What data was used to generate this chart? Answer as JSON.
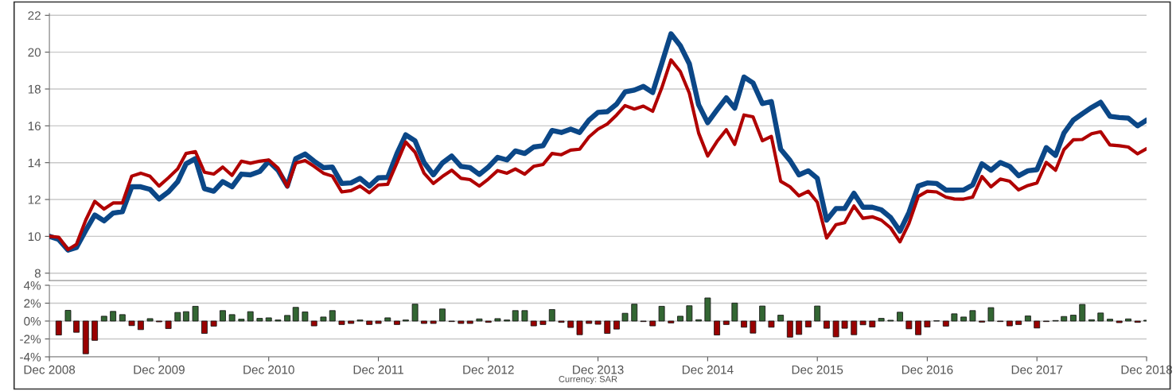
{
  "chart_data": [
    {
      "type": "line",
      "x": [
        "2008-12",
        "2009-01",
        "2009-02",
        "2009-03",
        "2009-04",
        "2009-05",
        "2009-06",
        "2009-07",
        "2009-08",
        "2009-09",
        "2009-10",
        "2009-11",
        "2009-12",
        "2010-01",
        "2010-02",
        "2010-03",
        "2010-04",
        "2010-05",
        "2010-06",
        "2010-07",
        "2010-08",
        "2010-09",
        "2010-10",
        "2010-11",
        "2010-12",
        "2011-01",
        "2011-02",
        "2011-03",
        "2011-04",
        "2011-05",
        "2011-06",
        "2011-07",
        "2011-08",
        "2011-09",
        "2011-10",
        "2011-11",
        "2011-12",
        "2012-01",
        "2012-02",
        "2012-03",
        "2012-04",
        "2012-05",
        "2012-06",
        "2012-07",
        "2012-08",
        "2012-09",
        "2012-10",
        "2012-11",
        "2012-12",
        "2013-01",
        "2013-02",
        "2013-03",
        "2013-04",
        "2013-05",
        "2013-06",
        "2013-07",
        "2013-08",
        "2013-09",
        "2013-10",
        "2013-11",
        "2013-12",
        "2014-01",
        "2014-02",
        "2014-03",
        "2014-04",
        "2014-05",
        "2014-06",
        "2014-07",
        "2014-08",
        "2014-09",
        "2014-10",
        "2014-11",
        "2014-12",
        "2015-01",
        "2015-02",
        "2015-03",
        "2015-04",
        "2015-05",
        "2015-06",
        "2015-07",
        "2015-08",
        "2015-09",
        "2015-10",
        "2015-11",
        "2015-12",
        "2016-01",
        "2016-02",
        "2016-03",
        "2016-04",
        "2016-05",
        "2016-06",
        "2016-07",
        "2016-08",
        "2016-09",
        "2016-10",
        "2016-11",
        "2016-12",
        "2017-01",
        "2017-02",
        "2017-03",
        "2017-04",
        "2017-05",
        "2017-06",
        "2017-07",
        "2017-08",
        "2017-09",
        "2017-10",
        "2017-11",
        "2017-12",
        "2018-01",
        "2018-02",
        "2018-03",
        "2018-04",
        "2018-05",
        "2018-06",
        "2018-07",
        "2018-08",
        "2018-09",
        "2018-10",
        "2018-11",
        "2018-12"
      ],
      "series": [
        {
          "color": "#0b4787",
          "values": [
            10.0,
            9.83,
            9.25,
            9.39,
            10.32,
            11.16,
            10.84,
            11.26,
            11.34,
            12.69,
            12.69,
            12.55,
            12.03,
            12.41,
            12.97,
            13.94,
            14.22,
            12.59,
            12.45,
            12.97,
            12.69,
            13.38,
            13.34,
            13.52,
            14.08,
            13.59,
            12.73,
            14.22,
            14.47,
            14.08,
            13.73,
            13.76,
            12.87,
            12.9,
            13.15,
            12.73,
            13.18,
            13.2,
            14.5,
            15.51,
            15.19,
            14.01,
            13.34,
            13.98,
            14.36,
            13.8,
            13.73,
            13.36,
            13.76,
            14.29,
            14.15,
            14.64,
            14.5,
            14.85,
            14.92,
            15.75,
            15.64,
            15.82,
            15.64,
            16.31,
            16.73,
            16.77,
            17.18,
            17.84,
            17.94,
            18.14,
            17.81,
            19.37,
            21.0,
            20.35,
            19.37,
            17.14,
            16.17,
            16.86,
            17.52,
            16.96,
            18.65,
            18.33,
            17.21,
            17.32,
            14.73,
            14.12,
            13.34,
            13.56,
            13.15,
            10.88,
            11.51,
            11.51,
            12.34,
            11.58,
            11.58,
            11.44,
            11.02,
            10.28,
            11.3,
            12.73,
            12.9,
            12.87,
            12.51,
            12.51,
            12.52,
            12.79,
            13.94,
            13.59,
            14.01,
            13.8,
            13.29,
            13.56,
            13.62,
            14.82,
            14.4,
            15.61,
            16.31,
            16.66,
            17.0,
            17.28,
            16.52,
            16.45,
            16.42,
            16.0,
            16.31
          ]
        },
        {
          "color": "#b00000",
          "values": [
            10.0,
            9.95,
            9.28,
            9.56,
            10.88,
            11.9,
            11.48,
            11.81,
            11.81,
            13.27,
            13.43,
            13.26,
            12.73,
            13.18,
            13.66,
            14.5,
            14.6,
            13.48,
            13.38,
            13.76,
            13.31,
            14.08,
            13.97,
            14.08,
            14.15,
            13.7,
            12.69,
            13.98,
            14.12,
            13.8,
            13.43,
            13.27,
            12.41,
            12.48,
            12.73,
            12.37,
            12.79,
            12.83,
            14.0,
            15.12,
            14.57,
            13.43,
            12.87,
            13.25,
            13.59,
            13.15,
            13.08,
            12.73,
            13.11,
            13.57,
            13.43,
            13.66,
            13.38,
            13.8,
            13.9,
            14.5,
            14.43,
            14.68,
            14.73,
            15.4,
            15.82,
            16.1,
            16.59,
            17.1,
            16.91,
            17.07,
            16.79,
            18.05,
            19.58,
            18.95,
            17.77,
            15.61,
            14.36,
            15.15,
            15.79,
            14.99,
            16.59,
            16.49,
            15.19,
            15.43,
            12.99,
            12.69,
            12.2,
            12.45,
            11.85,
            9.91,
            10.63,
            10.74,
            11.65,
            10.98,
            11.06,
            10.88,
            10.46,
            9.7,
            10.7,
            12.17,
            12.45,
            12.41,
            12.13,
            12.03,
            12.02,
            12.13,
            13.25,
            12.69,
            13.11,
            12.99,
            12.52,
            12.76,
            12.9,
            14.01,
            13.59,
            14.71,
            15.24,
            15.26,
            15.57,
            15.68,
            14.96,
            14.92,
            14.85,
            14.48,
            14.76
          ]
        }
      ],
      "xlim": [
        "2008-12",
        "2018-12"
      ],
      "ylim": [
        7.6,
        22.1
      ],
      "yticks": [
        8,
        10,
        12,
        14,
        16,
        18,
        20,
        22
      ],
      "grid": "y",
      "tick_labels": "y"
    },
    {
      "type": "bar",
      "x": [
        "2009-01",
        "2009-02",
        "2009-03",
        "2009-04",
        "2009-05",
        "2009-06",
        "2009-07",
        "2009-08",
        "2009-09",
        "2009-10",
        "2009-11",
        "2009-12",
        "2010-01",
        "2010-02",
        "2010-03",
        "2010-04",
        "2010-05",
        "2010-06",
        "2010-07",
        "2010-08",
        "2010-09",
        "2010-10",
        "2010-11",
        "2010-12",
        "2011-01",
        "2011-02",
        "2011-03",
        "2011-04",
        "2011-05",
        "2011-06",
        "2011-07",
        "2011-08",
        "2011-09",
        "2011-10",
        "2011-11",
        "2011-12",
        "2012-01",
        "2012-02",
        "2012-03",
        "2012-04",
        "2012-05",
        "2012-06",
        "2012-07",
        "2012-08",
        "2012-09",
        "2012-10",
        "2012-11",
        "2012-12",
        "2013-01",
        "2013-02",
        "2013-03",
        "2013-04",
        "2013-05",
        "2013-06",
        "2013-07",
        "2013-08",
        "2013-09",
        "2013-10",
        "2013-11",
        "2013-12",
        "2014-01",
        "2014-02",
        "2014-03",
        "2014-04",
        "2014-05",
        "2014-06",
        "2014-07",
        "2014-08",
        "2014-09",
        "2014-10",
        "2014-11",
        "2014-12",
        "2015-01",
        "2015-02",
        "2015-03",
        "2015-04",
        "2015-05",
        "2015-06",
        "2015-07",
        "2015-08",
        "2015-09",
        "2015-10",
        "2015-11",
        "2015-12",
        "2016-01",
        "2016-02",
        "2016-03",
        "2016-04",
        "2016-05",
        "2016-06",
        "2016-07",
        "2016-08",
        "2016-09",
        "2016-10",
        "2016-11",
        "2016-12",
        "2017-01",
        "2017-02",
        "2017-03",
        "2017-04",
        "2017-05",
        "2017-06",
        "2017-07",
        "2017-08",
        "2017-09",
        "2017-10",
        "2017-11",
        "2017-12",
        "2018-01",
        "2018-02",
        "2018-03",
        "2018-04",
        "2018-05",
        "2018-06",
        "2018-07",
        "2018-08",
        "2018-09",
        "2018-10",
        "2018-11",
        "2018-12"
      ],
      "values": [
        -1.56,
        1.2,
        -1.26,
        -3.66,
        -2.16,
        0.54,
        1.08,
        0.72,
        -0.51,
        -0.96,
        0.27,
        -0.09,
        -0.84,
        0.96,
        1.05,
        1.65,
        -1.38,
        -0.57,
        1.17,
        0.72,
        0.21,
        1.05,
        0.3,
        0.36,
        0.12,
        0.63,
        1.53,
        1.02,
        -0.54,
        0.45,
        1.17,
        -0.39,
        -0.27,
        0.12,
        -0.39,
        -0.27,
        0.36,
        -0.39,
        0.12,
        1.89,
        -0.27,
        -0.27,
        1.35,
        -0.06,
        -0.27,
        -0.27,
        0.24,
        -0.15,
        0.27,
        0.12,
        1.17,
        1.17,
        -0.54,
        -0.39,
        1.29,
        -0.15,
        -0.72,
        -1.53,
        -0.27,
        -0.36,
        -1.38,
        -0.9,
        0.87,
        1.89,
        -0.06,
        -0.54,
        1.65,
        -0.21,
        0.54,
        1.71,
        0.15,
        2.58,
        -1.56,
        -0.39,
        2.01,
        -0.69,
        -1.35,
        1.68,
        -0.69,
        0.66,
        -1.8,
        -1.5,
        -0.66,
        1.68,
        -0.81,
        -1.77,
        -0.81,
        -1.53,
        -0.42,
        -0.66,
        0.3,
        0.09,
        0.99,
        -0.87,
        -1.53,
        -0.66,
        0.03,
        -0.57,
        0.81,
        0.45,
        1.17,
        -0.12,
        1.5,
        -0.06,
        -0.54,
        -0.39,
        0.57,
        -0.78,
        -0.06,
        0.06,
        0.51,
        0.66,
        1.86,
        0.15,
        0.9,
        0.21,
        -0.18,
        0.24,
        -0.15,
        0.09
      ],
      "colors": [
        "#990000",
        "#336633",
        "#990000",
        "#990000",
        "#990000",
        "#336633",
        "#336633",
        "#336633",
        "#990000",
        "#990000",
        "#336633",
        "#990000",
        "#990000",
        "#336633",
        "#336633",
        "#336633",
        "#990000",
        "#990000",
        "#336633",
        "#336633",
        "#336633",
        "#336633",
        "#336633",
        "#336633",
        "#336633",
        "#336633",
        "#336633",
        "#336633",
        "#990000",
        "#336633",
        "#336633",
        "#990000",
        "#990000",
        "#336633",
        "#990000",
        "#990000",
        "#336633",
        "#990000",
        "#336633",
        "#336633",
        "#990000",
        "#990000",
        "#336633",
        "#990000",
        "#990000",
        "#990000",
        "#336633",
        "#990000",
        "#336633",
        "#336633",
        "#336633",
        "#336633",
        "#990000",
        "#990000",
        "#336633",
        "#990000",
        "#990000",
        "#990000",
        "#990000",
        "#990000",
        "#990000",
        "#990000",
        "#336633",
        "#336633",
        "#990000",
        "#990000",
        "#336633",
        "#990000",
        "#336633",
        "#336633",
        "#336633",
        "#336633",
        "#990000",
        "#990000",
        "#336633",
        "#990000",
        "#990000",
        "#336633",
        "#990000",
        "#336633",
        "#990000",
        "#990000",
        "#990000",
        "#336633",
        "#990000",
        "#990000",
        "#990000",
        "#990000",
        "#990000",
        "#990000",
        "#336633",
        "#336633",
        "#336633",
        "#990000",
        "#990000",
        "#990000",
        "#336633",
        "#990000",
        "#336633",
        "#336633",
        "#336633",
        "#990000",
        "#336633",
        "#990000",
        "#990000",
        "#990000",
        "#336633",
        "#990000",
        "#990000",
        "#336633",
        "#336633",
        "#336633",
        "#336633",
        "#336633",
        "#336633",
        "#336633",
        "#990000",
        "#336633",
        "#990000",
        "#336633"
      ],
      "xlim": [
        "2008-12",
        "2018-12"
      ],
      "xticks": [
        {
          "value": "2008-12",
          "label": "Dec 2008"
        },
        {
          "value": "2009-12",
          "label": "Dec 2009"
        },
        {
          "value": "2010-12",
          "label": "Dec 2010"
        },
        {
          "value": "2011-12",
          "label": "Dec 2011"
        },
        {
          "value": "2012-12",
          "label": "Dec 2012"
        },
        {
          "value": "2013-12",
          "label": "Dec 2013"
        },
        {
          "value": "2014-12",
          "label": "Dec 2014"
        },
        {
          "value": "2015-12",
          "label": "Dec 2015"
        },
        {
          "value": "2016-12",
          "label": "Dec 2016"
        },
        {
          "value": "2017-12",
          "label": "Dec 2017"
        },
        {
          "value": "2018-12",
          "label": "Dec 2018"
        }
      ],
      "ylim": [
        -4,
        4
      ],
      "yticks": [
        {
          "value": -4,
          "label": "-4%"
        },
        {
          "value": -2,
          "label": "-2%"
        },
        {
          "value": 0,
          "label": "0%"
        },
        {
          "value": 2,
          "label": "2%"
        },
        {
          "value": 4,
          "label": "4%"
        }
      ],
      "grid": "y",
      "annotations": [
        "Currency: SAR"
      ]
    }
  ]
}
